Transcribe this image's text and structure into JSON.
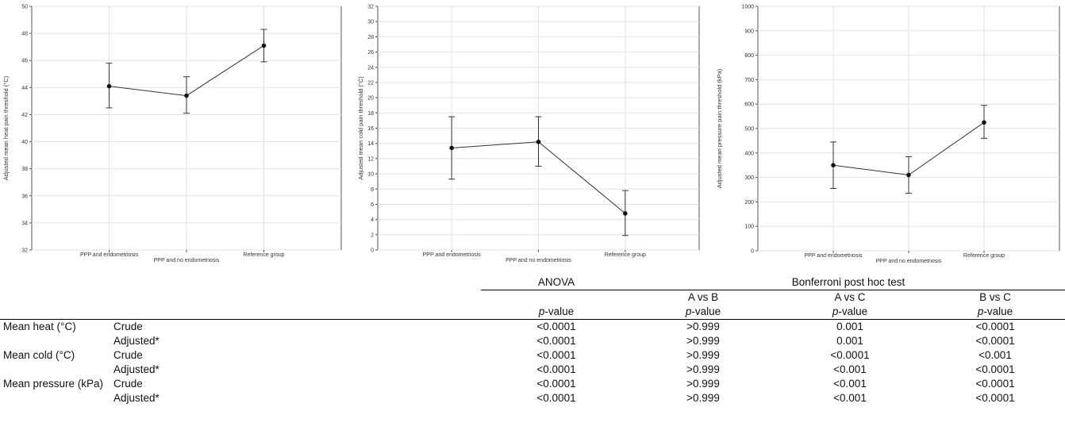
{
  "chart_data": [
    {
      "type": "line",
      "ylabel": "Adjusted mean heat pain threshold (°C)",
      "ylim": [
        32,
        50
      ],
      "yticks": [
        32,
        34,
        36,
        38,
        40,
        42,
        44,
        46,
        48,
        50
      ],
      "categories": [
        "PPP and endometriosis",
        "PPP and no endometriosis",
        "Reference group"
      ],
      "values": [
        44.1,
        43.4,
        47.1
      ],
      "error_low": [
        42.5,
        42.1,
        45.9
      ],
      "error_high": [
        45.8,
        44.8,
        48.3
      ],
      "grid": true
    },
    {
      "type": "line",
      "ylabel": "Adjusted mean cold pain threshold (°C)",
      "ylim": [
        0,
        32
      ],
      "yticks": [
        0,
        2,
        4,
        6,
        8,
        10,
        12,
        14,
        16,
        18,
        20,
        22,
        24,
        26,
        28,
        30,
        32
      ],
      "categories": [
        "PPP and endometriosis",
        "PPP and no endometriosis",
        "Reference group"
      ],
      "values": [
        13.4,
        14.2,
        4.8
      ],
      "error_low": [
        9.3,
        11.0,
        1.9
      ],
      "error_high": [
        17.5,
        17.5,
        7.8
      ],
      "grid": true
    },
    {
      "type": "line",
      "ylabel": "Adjusted mean pressure pain threshold (kPa)",
      "ylim": [
        0,
        1000
      ],
      "yticks": [
        0,
        100,
        200,
        300,
        400,
        500,
        600,
        700,
        800,
        900,
        1000
      ],
      "categories": [
        "PPP and endometriosis",
        "PPP and no endometriosis",
        "Reference group"
      ],
      "values": [
        350,
        310,
        525
      ],
      "error_low": [
        255,
        235,
        460
      ],
      "error_high": [
        445,
        385,
        595
      ],
      "grid": true
    }
  ],
  "table": {
    "header_anova": "ANOVA",
    "header_bonferroni": "Bonferroni post hoc test",
    "header_a_vs_b": "A vs B",
    "header_a_vs_c": "A vs C",
    "header_b_vs_c": "B vs C",
    "pvalue_italic": "p",
    "pvalue_suffix": "-value",
    "rows": [
      {
        "group": "Mean heat (°C)",
        "type": "Crude",
        "anova": "<0.0001",
        "ab": ">0.999",
        "ac": "0.001",
        "bc": "<0.0001"
      },
      {
        "group": "",
        "type": "Adjusted*",
        "anova": "<0.0001",
        "ab": ">0.999",
        "ac": "0.001",
        "bc": "<0.0001"
      },
      {
        "group": "Mean cold (°C)",
        "type": "Crude",
        "anova": "<0.0001",
        "ab": ">0.999",
        "ac": "<0.0001",
        "bc": "<0.001"
      },
      {
        "group": "",
        "type": "Adjusted*",
        "anova": "<0.0001",
        "ab": ">0.999",
        "ac": "<0.001",
        "bc": "<0.0001"
      },
      {
        "group": "Mean pressure (kPa)",
        "type": "Crude",
        "anova": "<0.0001",
        "ab": ">0.999",
        "ac": "<0.001",
        "bc": "<0.0001"
      },
      {
        "group": "",
        "type": "Adjusted*",
        "anova": "<0.0001",
        "ab": ">0.999",
        "ac": "<0.001",
        "bc": "<0.0001"
      }
    ]
  }
}
